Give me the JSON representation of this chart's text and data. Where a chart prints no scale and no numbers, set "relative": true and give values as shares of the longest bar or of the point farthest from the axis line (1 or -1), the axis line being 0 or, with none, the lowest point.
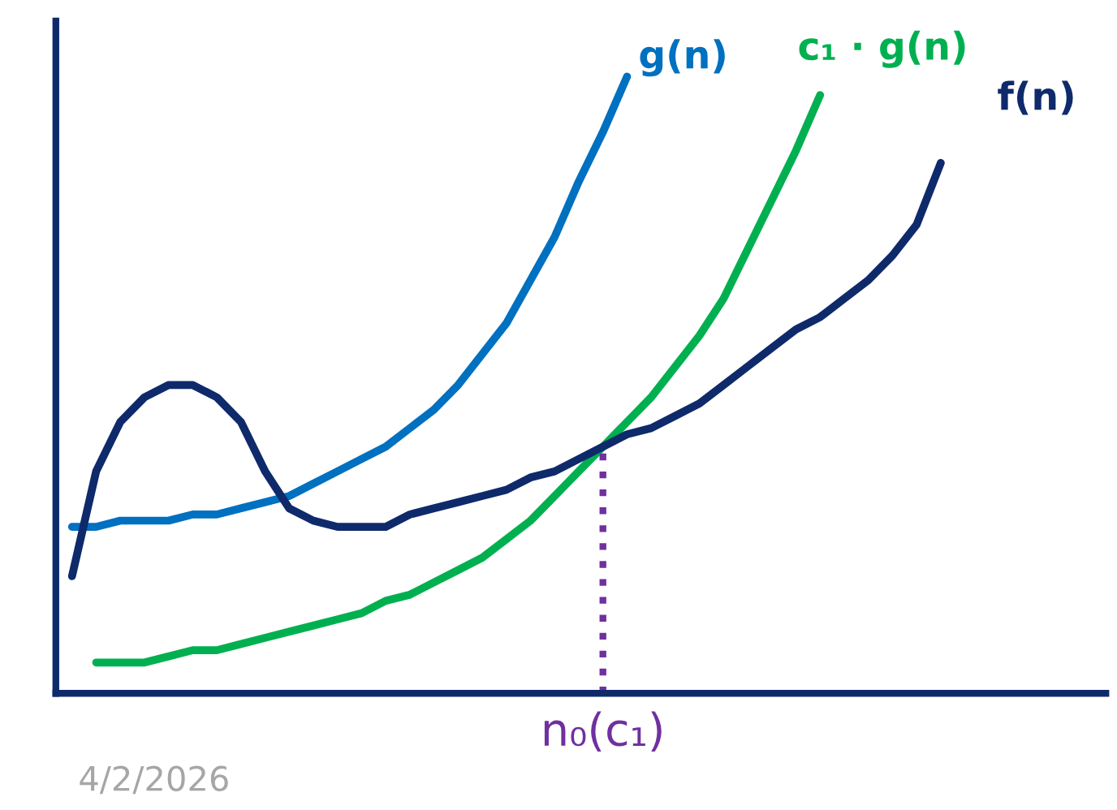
{
  "chart_data": {
    "type": "line",
    "relative": true,
    "categories": [
      null,
      null,
      null,
      null,
      null,
      null,
      null,
      null,
      null,
      null,
      null,
      null,
      null,
      null,
      null,
      null,
      null,
      null,
      null,
      null,
      null,
      null,
      null,
      null,
      null,
      null,
      null,
      null,
      null,
      null,
      null,
      null,
      null,
      null,
      null,
      null,
      null
    ],
    "series": [
      {
        "name": "g(n)",
        "color": "#0070c0",
        "values": [
          0.27,
          0.27,
          0.28,
          0.28,
          0.28,
          0.29,
          0.29,
          0.3,
          0.31,
          0.32,
          0.34,
          0.36,
          0.38,
          0.4,
          0.43,
          0.46,
          0.5,
          0.55,
          0.6,
          0.67,
          0.74,
          0.83,
          0.91,
          1.0,
          null,
          null,
          null,
          null,
          null,
          null,
          null,
          null,
          null,
          null,
          null,
          null,
          null
        ]
      },
      {
        "name": "c₁ · g(n)",
        "color": "#00b050",
        "values": [
          null,
          0.05,
          0.05,
          0.05,
          0.06,
          0.07,
          0.07,
          0.08,
          0.09,
          0.1,
          0.11,
          0.12,
          0.13,
          0.15,
          0.16,
          0.18,
          0.2,
          0.22,
          0.25,
          0.28,
          0.32,
          0.36,
          0.4,
          0.44,
          0.48,
          0.53,
          0.58,
          0.64,
          0.72,
          0.8,
          0.88,
          0.97,
          null,
          null,
          null,
          null,
          null
        ]
      },
      {
        "name": "f(n)",
        "color": "#0f2a6b",
        "values": [
          0.19,
          0.36,
          0.44,
          0.48,
          0.5,
          0.5,
          0.48,
          0.44,
          0.36,
          0.3,
          0.28,
          0.27,
          0.27,
          0.27,
          0.29,
          0.3,
          0.31,
          0.32,
          0.33,
          0.35,
          0.36,
          0.38,
          0.4,
          0.42,
          0.43,
          0.45,
          0.47,
          0.5,
          0.53,
          0.56,
          0.59,
          0.61,
          0.64,
          0.67,
          0.71,
          0.76,
          0.86
        ]
      }
    ],
    "annotations": [
      "n₀(c₁)",
      "4/2/2026"
    ],
    "legend": false,
    "grid": false,
    "marker": "none",
    "line_style": "solid"
  }
}
